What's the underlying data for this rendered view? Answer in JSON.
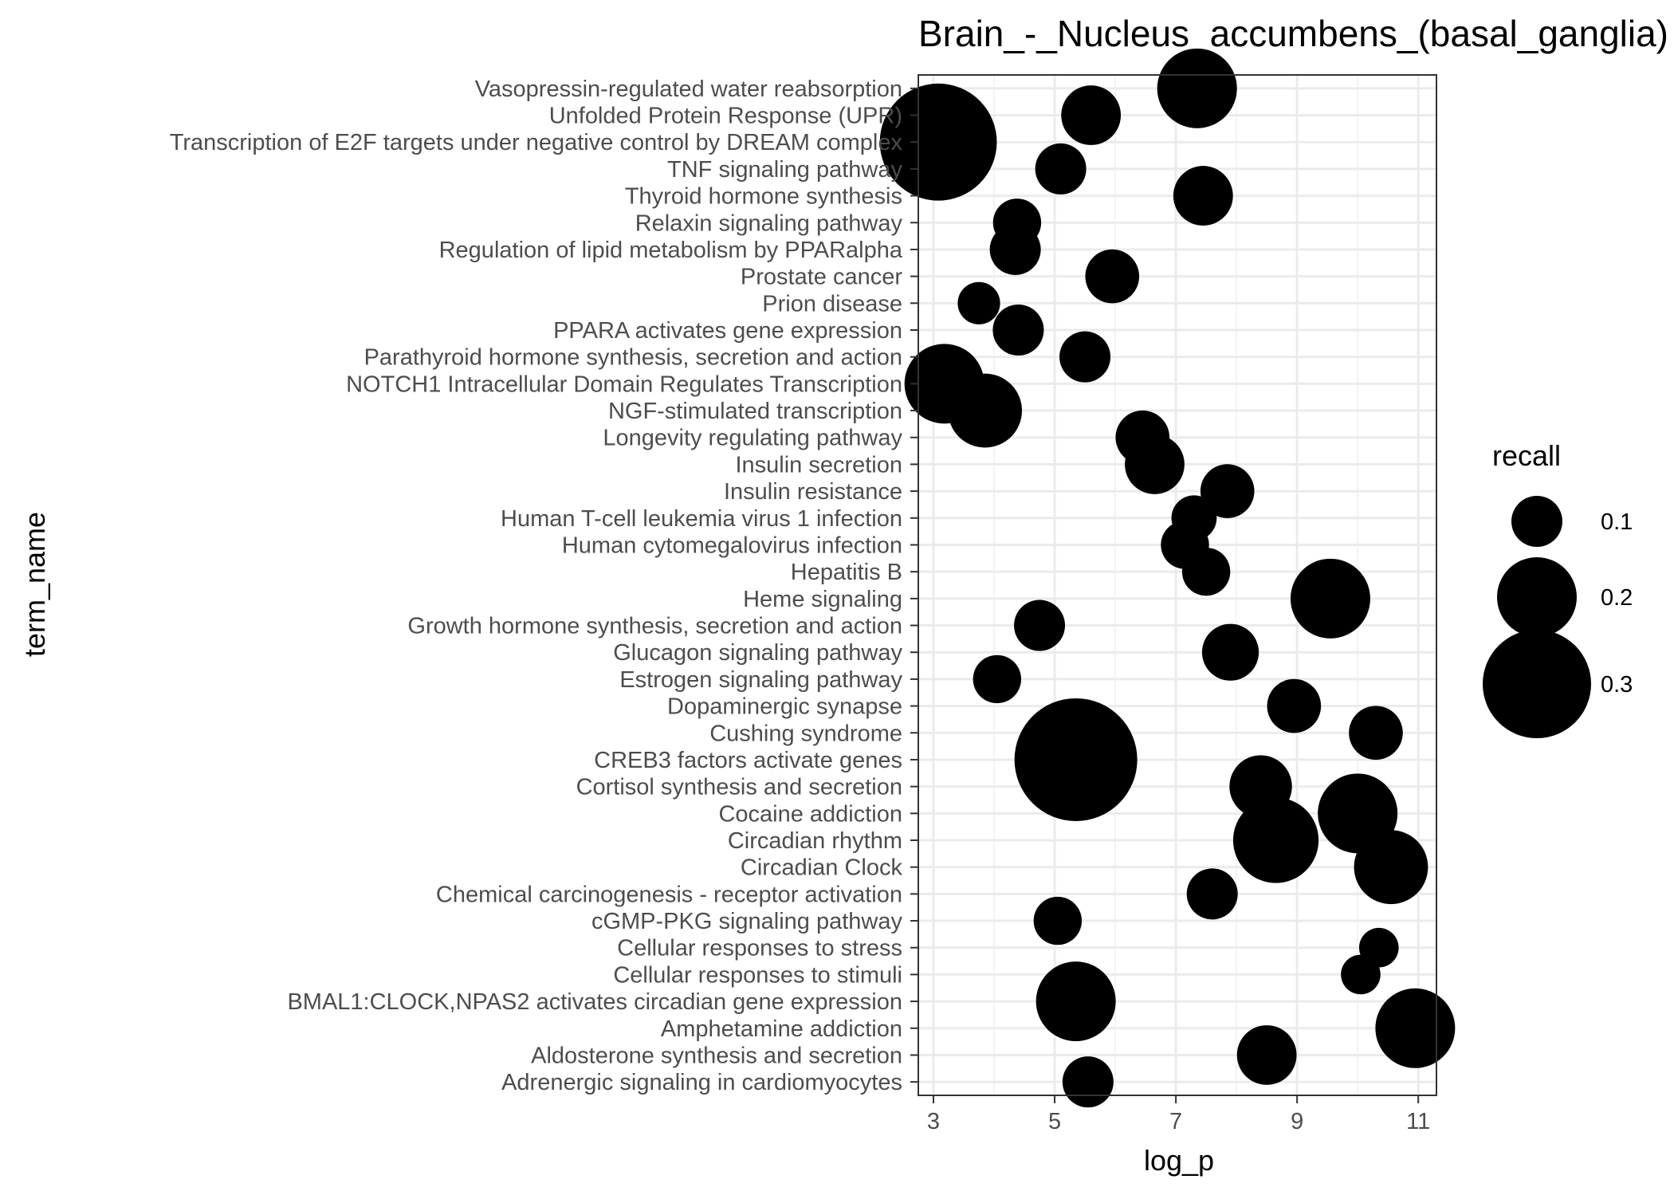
{
  "chart_data": {
    "type": "scatter",
    "title": "Brain_-_Nucleus_accumbens_(basal_ganglia)",
    "xlabel": "log_p",
    "ylabel": "term_name",
    "xlim": [
      2.75,
      11.3
    ],
    "x_ticks": [
      3,
      5,
      7,
      9,
      11
    ],
    "grid": true,
    "size_legend": {
      "title": "recall",
      "placement": "right",
      "entries": [
        {
          "label": "0.1",
          "value": 0.1
        },
        {
          "label": "0.2",
          "value": 0.2
        },
        {
          "label": "0.3",
          "value": 0.3
        }
      ]
    },
    "points": [
      {
        "term": "Vasopressin-regulated water reabsorption",
        "log_p": 7.35,
        "recall": 0.2
      },
      {
        "term": "Unfolded Protein Response (UPR)",
        "log_p": 5.6,
        "recall": 0.13
      },
      {
        "term": "Transcription of E2F targets under negative control by DREAM complex",
        "log_p": 3.08,
        "recall": 0.33
      },
      {
        "term": "TNF signaling pathway",
        "log_p": 5.1,
        "recall": 0.1
      },
      {
        "term": "Thyroid hormone synthesis",
        "log_p": 7.45,
        "recall": 0.13
      },
      {
        "term": "Relaxin signaling pathway",
        "log_p": 4.38,
        "recall": 0.09
      },
      {
        "term": "Regulation of lipid metabolism by PPARalpha",
        "log_p": 4.35,
        "recall": 0.1
      },
      {
        "term": "Prostate cancer",
        "log_p": 5.95,
        "recall": 0.11
      },
      {
        "term": "Prion disease",
        "log_p": 3.75,
        "recall": 0.07
      },
      {
        "term": "PPARA activates gene expression",
        "log_p": 4.4,
        "recall": 0.1
      },
      {
        "term": "Parathyroid hormone synthesis, secretion and action",
        "log_p": 5.5,
        "recall": 0.1
      },
      {
        "term": "NOTCH1 Intracellular Domain Regulates Transcription",
        "log_p": 3.18,
        "recall": 0.2
      },
      {
        "term": "NGF-stimulated transcription",
        "log_p": 3.85,
        "recall": 0.18
      },
      {
        "term": "Longevity regulating pathway",
        "log_p": 6.45,
        "recall": 0.11
      },
      {
        "term": "Insulin secretion",
        "log_p": 6.65,
        "recall": 0.13
      },
      {
        "term": "Insulin resistance",
        "log_p": 7.85,
        "recall": 0.11
      },
      {
        "term": "Human T-cell leukemia virus 1 infection",
        "log_p": 7.3,
        "recall": 0.08
      },
      {
        "term": "Human cytomegalovirus infection",
        "log_p": 7.15,
        "recall": 0.09
      },
      {
        "term": "Hepatitis B",
        "log_p": 7.5,
        "recall": 0.09
      },
      {
        "term": "Heme signaling",
        "log_p": 9.55,
        "recall": 0.2
      },
      {
        "term": "Growth hormone synthesis, secretion and action",
        "log_p": 4.75,
        "recall": 0.1
      },
      {
        "term": "Glucagon signaling pathway",
        "log_p": 7.9,
        "recall": 0.12
      },
      {
        "term": "Estrogen signaling pathway",
        "log_p": 4.05,
        "recall": 0.09
      },
      {
        "term": "Dopaminergic synapse",
        "log_p": 8.95,
        "recall": 0.11
      },
      {
        "term": "Cushing syndrome",
        "log_p": 10.3,
        "recall": 0.11
      },
      {
        "term": "CREB3 factors activate genes",
        "log_p": 5.35,
        "recall": 0.35
      },
      {
        "term": "Cortisol synthesis and secretion",
        "log_p": 8.4,
        "recall": 0.14
      },
      {
        "term": "Cocaine addiction",
        "log_p": 10.0,
        "recall": 0.2
      },
      {
        "term": "Circadian rhythm",
        "log_p": 8.65,
        "recall": 0.22
      },
      {
        "term": "Circadian Clock",
        "log_p": 10.55,
        "recall": 0.18
      },
      {
        "term": "Chemical carcinogenesis - receptor activation",
        "log_p": 7.6,
        "recall": 0.1
      },
      {
        "term": "cGMP-PKG signaling pathway",
        "log_p": 5.05,
        "recall": 0.09
      },
      {
        "term": "Cellular responses to stress",
        "log_p": 10.35,
        "recall": 0.06
      },
      {
        "term": "Cellular responses to stimuli",
        "log_p": 10.05,
        "recall": 0.06
      },
      {
        "term": "BMAL1:CLOCK,NPAS2 activates circadian gene expression",
        "log_p": 5.35,
        "recall": 0.2
      },
      {
        "term": "Amphetamine addiction",
        "log_p": 10.95,
        "recall": 0.2
      },
      {
        "term": "Aldosterone synthesis and secretion",
        "log_p": 8.5,
        "recall": 0.13
      },
      {
        "term": "Adrenergic signaling in cardiomyocytes",
        "log_p": 5.55,
        "recall": 0.1
      }
    ]
  }
}
